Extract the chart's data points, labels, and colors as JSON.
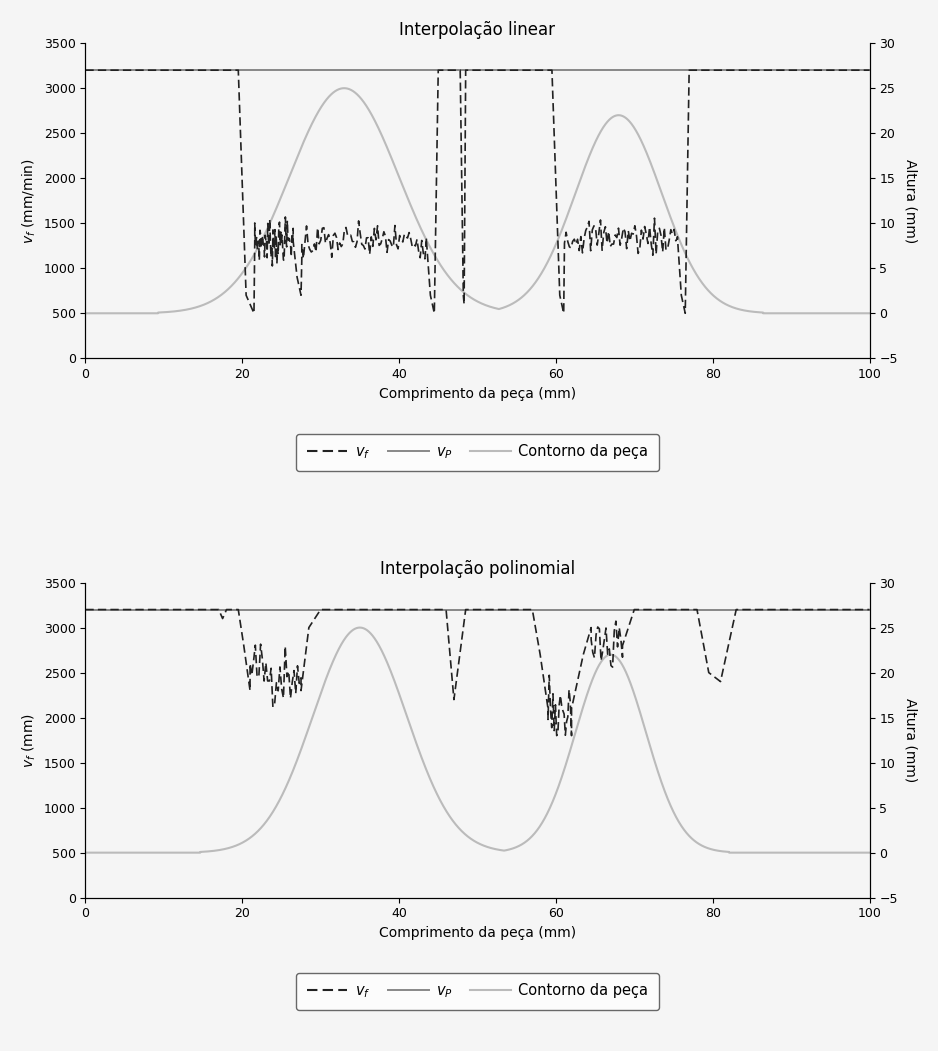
{
  "title1": "Interpolação linear",
  "title2": "Interpolação polinomial",
  "xlabel": "Comprimento da peça (mm)",
  "ylabel_left1": "$v_f$ (mm/min)",
  "ylabel_left2": "$v_f$ (mm)",
  "ylabel_right": "Altura (mm)",
  "xlim": [
    0,
    100
  ],
  "ylim_left": [
    0,
    3500
  ],
  "ylim_right": [
    -5,
    30
  ],
  "xticks": [
    0,
    20,
    40,
    60,
    80,
    100
  ],
  "yticks_left": [
    0,
    500,
    1000,
    1500,
    2000,
    2500,
    3000,
    3500
  ],
  "yticks_right": [
    -5,
    0,
    5,
    10,
    15,
    20,
    25,
    30
  ],
  "vp_value": 3200,
  "vp_color": "#888888",
  "vf_color": "#222222",
  "contorno_color": "#bbbbbb",
  "background_color": "#f5f5f5",
  "figsize": [
    9.38,
    10.51
  ],
  "dpi": 100
}
